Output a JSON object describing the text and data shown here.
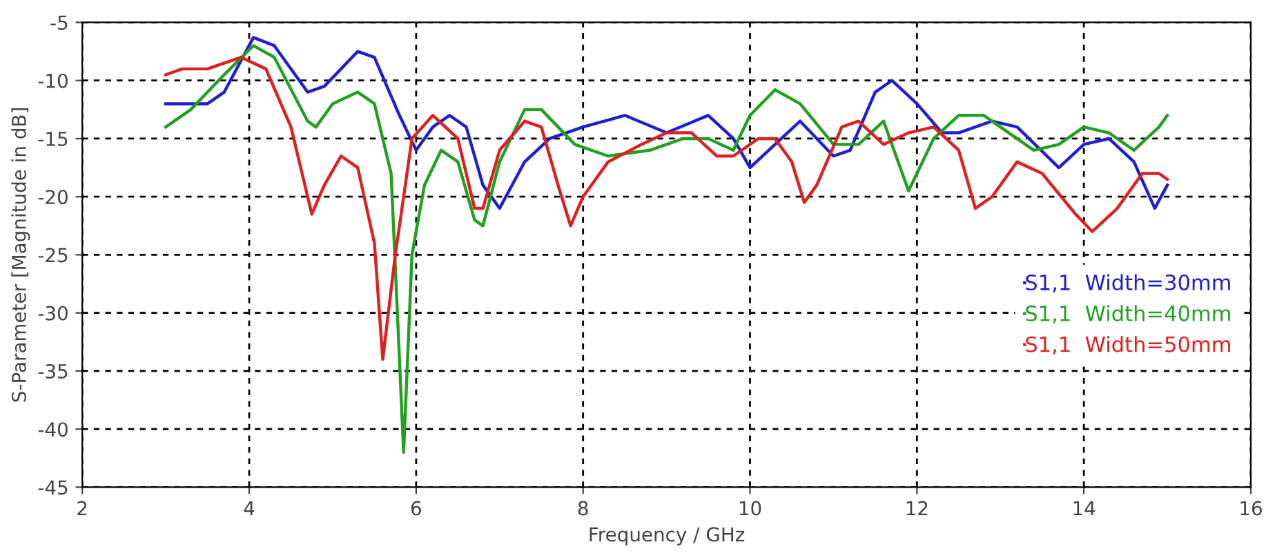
{
  "chart_data": {
    "type": "line",
    "xlabel": "Frequency / GHz",
    "ylabel": "S-Parameter [Magnitude in dB]",
    "xlim": [
      2,
      16
    ],
    "xticks": [
      2,
      4,
      6,
      8,
      10,
      12,
      14,
      16
    ],
    "ylim": [
      -45,
      -5
    ],
    "yticks": [
      -45,
      -40,
      -35,
      -30,
      -25,
      -20,
      -15,
      -10,
      -5
    ],
    "grid": true,
    "legend": "right",
    "marker": "none",
    "line_style": "solid",
    "series": [
      {
        "name": "S1,1  Width=30mm",
        "color": "#1f1fd0",
        "x": [
          3.0,
          3.5,
          3.7,
          4.05,
          4.3,
          4.7,
          4.9,
          5.3,
          5.5,
          5.8,
          6.0,
          6.2,
          6.4,
          6.6,
          6.8,
          7.0,
          7.3,
          7.6,
          8.0,
          8.5,
          9.0,
          9.5,
          9.8,
          10.0,
          10.3,
          10.6,
          11.0,
          11.2,
          11.5,
          11.7,
          12.0,
          12.3,
          12.5,
          12.9,
          13.2,
          13.7,
          14.0,
          14.3,
          14.6,
          14.85,
          15.0
        ],
        "values": [
          -12,
          -12,
          -11,
          -6.3,
          -7,
          -11,
          -10.5,
          -7.5,
          -8,
          -13,
          -16,
          -14,
          -13,
          -14,
          -19,
          -21,
          -17,
          -15,
          -14,
          -13,
          -14.5,
          -13,
          -15,
          -17.5,
          -15.5,
          -13.5,
          -16.5,
          -16,
          -11,
          -10,
          -12,
          -14.5,
          -14.5,
          -13.5,
          -14,
          -17.5,
          -15.5,
          -15,
          -17,
          -21,
          -19
        ]
      },
      {
        "name": "S1,1  Width=40mm",
        "color": "#22a022",
        "x": [
          3.0,
          3.3,
          3.7,
          4.05,
          4.3,
          4.7,
          4.8,
          5.0,
          5.3,
          5.5,
          5.7,
          5.85,
          5.95,
          6.1,
          6.3,
          6.5,
          6.7,
          6.8,
          7.0,
          7.3,
          7.5,
          7.9,
          8.3,
          8.8,
          9.2,
          9.5,
          9.8,
          10.0,
          10.3,
          10.6,
          11.0,
          11.3,
          11.6,
          11.9,
          12.2,
          12.5,
          12.8,
          13.0,
          13.4,
          13.7,
          14.0,
          14.3,
          14.6,
          14.9,
          15.0
        ],
        "values": [
          -14,
          -12.5,
          -9.5,
          -7,
          -8,
          -13.5,
          -14,
          -12,
          -11,
          -12,
          -18,
          -42,
          -25,
          -19,
          -16,
          -17,
          -22,
          -22.5,
          -17,
          -12.5,
          -12.5,
          -15.5,
          -16.5,
          -16,
          -15,
          -15,
          -16,
          -13,
          -10.8,
          -12,
          -15.5,
          -15.5,
          -13.5,
          -19.5,
          -15,
          -13,
          -13,
          -14,
          -16,
          -15.5,
          -14,
          -14.5,
          -16,
          -14,
          -13
        ]
      },
      {
        "name": "S1,1  Width=50mm",
        "color": "#dd2020",
        "x": [
          3.0,
          3.2,
          3.5,
          3.9,
          4.2,
          4.5,
          4.75,
          4.9,
          5.1,
          5.3,
          5.5,
          5.6,
          5.75,
          5.95,
          6.2,
          6.5,
          6.7,
          6.8,
          7.0,
          7.3,
          7.5,
          7.7,
          7.85,
          8.0,
          8.3,
          8.7,
          9.0,
          9.3,
          9.6,
          9.8,
          10.1,
          10.3,
          10.5,
          10.65,
          10.8,
          11.1,
          11.3,
          11.6,
          11.9,
          12.2,
          12.5,
          12.7,
          12.9,
          13.2,
          13.5,
          13.9,
          14.1,
          14.4,
          14.7,
          14.9,
          15.0
        ],
        "values": [
          -9.5,
          -9,
          -9,
          -8,
          -9,
          -14,
          -21.5,
          -19,
          -16.5,
          -17.5,
          -24,
          -34,
          -25,
          -15,
          -13,
          -15,
          -21,
          -21,
          -16,
          -13.5,
          -14,
          -19,
          -22.5,
          -20,
          -17,
          -15.5,
          -14.5,
          -14.5,
          -16.5,
          -16.5,
          -15,
          -15,
          -17,
          -20.5,
          -19,
          -14,
          -13.5,
          -15.5,
          -14.5,
          -14,
          -16,
          -21,
          -20,
          -17,
          -18,
          -21.5,
          -23,
          -21,
          -18,
          -18,
          -18.5
        ]
      }
    ]
  }
}
